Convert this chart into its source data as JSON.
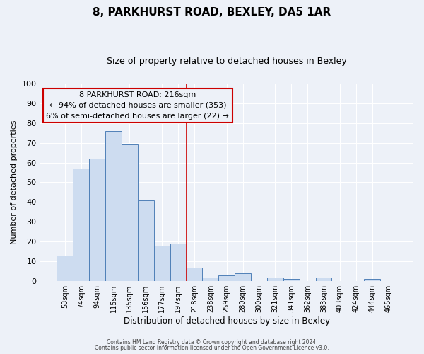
{
  "title": "8, PARKHURST ROAD, BEXLEY, DA5 1AR",
  "subtitle": "Size of property relative to detached houses in Bexley",
  "xlabel": "Distribution of detached houses by size in Bexley",
  "ylabel": "Number of detached properties",
  "bar_labels": [
    "53sqm",
    "74sqm",
    "94sqm",
    "115sqm",
    "135sqm",
    "156sqm",
    "177sqm",
    "197sqm",
    "218sqm",
    "238sqm",
    "259sqm",
    "280sqm",
    "300sqm",
    "321sqm",
    "341sqm",
    "362sqm",
    "383sqm",
    "403sqm",
    "424sqm",
    "444sqm",
    "465sqm"
  ],
  "bar_heights": [
    13,
    57,
    62,
    76,
    69,
    41,
    18,
    19,
    7,
    2,
    3,
    4,
    0,
    2,
    1,
    0,
    2,
    0,
    0,
    1,
    0
  ],
  "bar_color": "#cddcf0",
  "bar_edge_color": "#5080b8",
  "vline_color": "#cc0000",
  "annotation_title": "8 PARKHURST ROAD: 216sqm",
  "annotation_line1": "← 94% of detached houses are smaller (353)",
  "annotation_line2": "6% of semi-detached houses are larger (22) →",
  "annotation_box_edge": "#cc0000",
  "ylim": [
    0,
    100
  ],
  "yticks": [
    0,
    10,
    20,
    30,
    40,
    50,
    60,
    70,
    80,
    90,
    100
  ],
  "footer1": "Contains HM Land Registry data © Crown copyright and database right 2024.",
  "footer2": "Contains public sector information licensed under the Open Government Licence v3.0.",
  "bg_color": "#edf1f8",
  "grid_color": "#ffffff",
  "title_fontsize": 11,
  "subtitle_fontsize": 9,
  "annotation_fontsize": 8,
  "ylabel_fontsize": 8,
  "xlabel_fontsize": 8.5
}
